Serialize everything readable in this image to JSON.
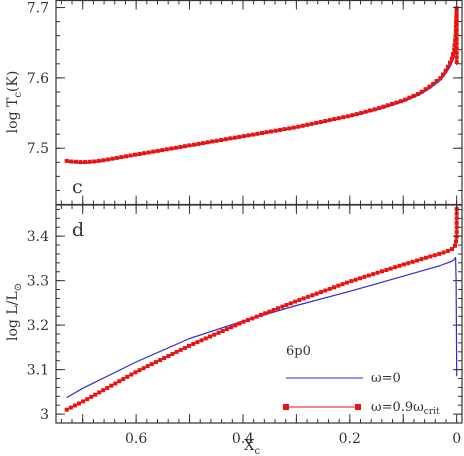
{
  "chart_data": [
    {
      "panel": "c",
      "type": "line",
      "panel_label": "c",
      "ylabel": "log  T",
      "ylabel_sub": "c",
      "ylabel_unit": "(K)",
      "xlim": [
        0.75,
        -0.01
      ],
      "ylim": [
        7.42,
        7.71
      ],
      "yticks": [
        7.5,
        7.6,
        7.7
      ],
      "ytick_labels": [
        "7.5",
        "7.6",
        "7.7"
      ],
      "series": [
        {
          "key": "omega0",
          "color": "#2b2bd6",
          "x": [
            0.73,
            0.72,
            0.7,
            0.68,
            0.66,
            0.6,
            0.5,
            0.4,
            0.3,
            0.2,
            0.15,
            0.1,
            0.07,
            0.05,
            0.03,
            0.02,
            0.01,
            0.005,
            0.002,
            0.0
          ],
          "y": [
            7.481,
            7.48,
            7.479,
            7.48,
            7.482,
            7.49,
            7.503,
            7.516,
            7.529,
            7.545,
            7.554,
            7.566,
            7.576,
            7.585,
            7.597,
            7.607,
            7.619,
            7.63,
            7.645,
            7.66
          ]
        },
        {
          "key": "omega09",
          "color": "#e8140f",
          "markers": true,
          "x": [
            0.73,
            0.72,
            0.7,
            0.68,
            0.66,
            0.6,
            0.5,
            0.4,
            0.3,
            0.2,
            0.15,
            0.1,
            0.07,
            0.05,
            0.03,
            0.02,
            0.01,
            0.005,
            0.002,
            0.0,
            0.0
          ],
          "y": [
            7.482,
            7.481,
            7.48,
            7.481,
            7.483,
            7.491,
            7.504,
            7.517,
            7.53,
            7.546,
            7.556,
            7.568,
            7.578,
            7.588,
            7.6,
            7.611,
            7.625,
            7.638,
            7.66,
            7.7,
            7.618
          ]
        }
      ]
    },
    {
      "panel": "d",
      "type": "line",
      "panel_label": "d",
      "ylabel": "log  L/L",
      "ylabel_sub": "⊙",
      "xlabel": "X",
      "xlabel_sub": "c",
      "xlim": [
        0.75,
        -0.01
      ],
      "ylim": [
        2.98,
        3.47
      ],
      "xticks": [
        0.6,
        0.4,
        0.2,
        0.0
      ],
      "xtick_labels": [
        "0.6",
        "0.4",
        "0.2",
        "0"
      ],
      "yticks": [
        3.0,
        3.1,
        3.2,
        3.3,
        3.4
      ],
      "ytick_labels": [
        "3",
        "3.1",
        "3.2",
        "3.3",
        "3.4"
      ],
      "series": [
        {
          "key": "omega0",
          "color": "#2b2bd6",
          "x": [
            0.73,
            0.7,
            0.6,
            0.5,
            0.4,
            0.3,
            0.2,
            0.1,
            0.05,
            0.03,
            0.02,
            0.01,
            0.005,
            0.002,
            0.001,
            0.0005,
            0.0
          ],
          "y": [
            3.037,
            3.058,
            3.117,
            3.17,
            3.209,
            3.244,
            3.276,
            3.31,
            3.327,
            3.334,
            3.339,
            3.343,
            3.347,
            3.352,
            3.3,
            3.2,
            3.085
          ]
        },
        {
          "key": "omega09",
          "color": "#e8140f",
          "markers": true,
          "x": [
            0.73,
            0.7,
            0.6,
            0.5,
            0.4,
            0.3,
            0.2,
            0.1,
            0.05,
            0.03,
            0.02,
            0.01,
            0.005,
            0.002,
            0.0,
            0.0
          ],
          "y": [
            3.01,
            3.028,
            3.095,
            3.154,
            3.207,
            3.254,
            3.298,
            3.336,
            3.354,
            3.361,
            3.365,
            3.37,
            3.374,
            3.381,
            3.4,
            3.47
          ]
        }
      ]
    }
  ],
  "legend": {
    "title": "6p0",
    "entries": [
      {
        "key": "omega0",
        "text": "ω=0",
        "sub": ""
      },
      {
        "key": "omega09",
        "text": "ω=0.9ω",
        "sub": "crit"
      }
    ],
    "placement": "bottom-right"
  }
}
